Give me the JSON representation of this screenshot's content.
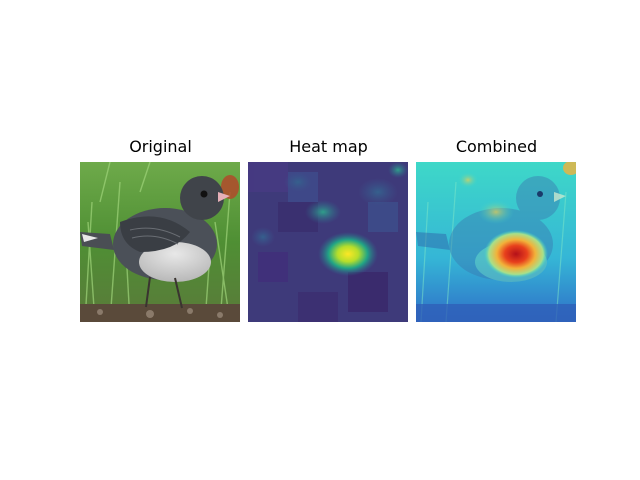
{
  "panels": [
    {
      "title": "Original",
      "image": "photo of a gray junco bird perched on grass"
    },
    {
      "title": "Heat map",
      "image": "viridis saliency heat map with bright hotspot at bird wing"
    },
    {
      "title": "Combined",
      "image": "jet-colormap heat map overlaid on bird photo"
    }
  ],
  "colors": {
    "viridis_low": "#3b1f6e",
    "viridis_mid": "#2f6d8e",
    "viridis_high": "#f6e620",
    "jet_low": "#2a4fd6",
    "jet_mid": "#3ed8c8",
    "jet_high": "#c71414"
  }
}
